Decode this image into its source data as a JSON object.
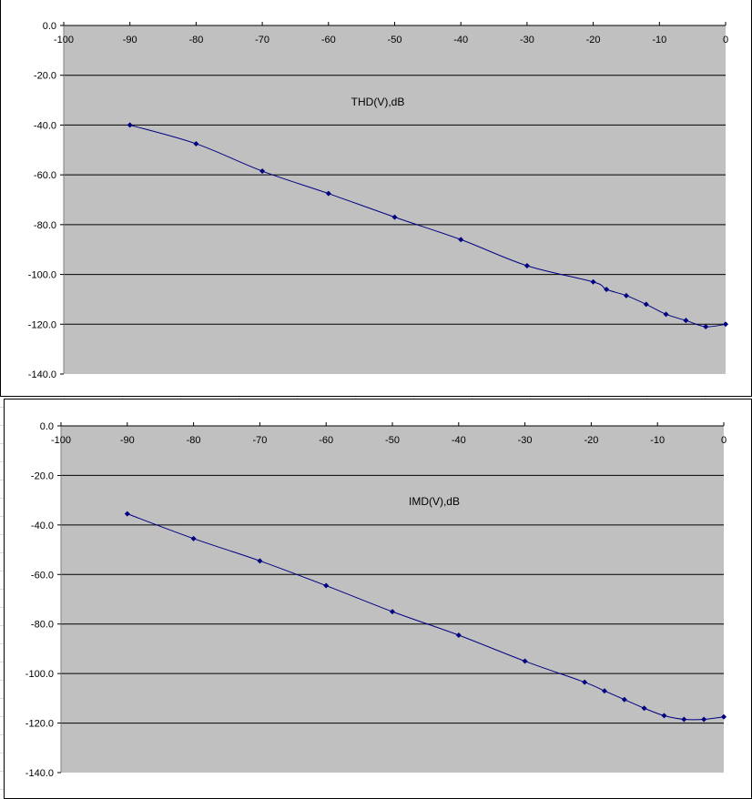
{
  "chart_data": [
    {
      "type": "line",
      "title": "THD(V),dB",
      "xlabel": "",
      "ylabel": "",
      "xlim": [
        -100,
        0
      ],
      "ylim": [
        -140,
        0
      ],
      "x_ticks": [
        "-100",
        "-90",
        "-80",
        "-70",
        "-60",
        "-50",
        "-40",
        "-30",
        "-20",
        "-10",
        "0"
      ],
      "y_ticks": [
        "0.0",
        "-20.0",
        "-40.0",
        "-60.0",
        "-80.0",
        "-100.0",
        "-120.0",
        "-140.0"
      ],
      "grid": "horizontal",
      "plot_background": "#c0c0c0",
      "series": [
        {
          "color": "#000080",
          "x": [
            -90,
            -80,
            -70,
            -60,
            -50,
            -40,
            -30,
            -20,
            -18,
            -15,
            -12,
            -9,
            -6,
            -3,
            0
          ],
          "y": [
            -40,
            -47.5,
            -58.5,
            -67.5,
            -77,
            -86,
            -96.5,
            -103,
            -106,
            -108.5,
            -112,
            -116,
            -118.5,
            -121,
            -120
          ]
        }
      ]
    },
    {
      "type": "line",
      "title": "IMD(V),dB",
      "xlabel": "",
      "ylabel": "",
      "xlim": [
        -100,
        0
      ],
      "ylim": [
        -140,
        0
      ],
      "x_ticks": [
        "-100",
        "-90",
        "-80",
        "-70",
        "-60",
        "-50",
        "-40",
        "-30",
        "-20",
        "-10",
        "0"
      ],
      "y_ticks": [
        "0.0",
        "-20.0",
        "-40.0",
        "-60.0",
        "-80.0",
        "-100.0",
        "-120.0",
        "-140.0"
      ],
      "grid": "horizontal",
      "plot_background": "#c0c0c0",
      "series": [
        {
          "color": "#000080",
          "x": [
            -90,
            -80,
            -70,
            -60,
            -50,
            -40,
            -30,
            -21,
            -18,
            -15,
            -12,
            -9,
            -6,
            -3,
            0
          ],
          "y": [
            -35.5,
            -45.5,
            -54.5,
            -64.5,
            -75,
            -84.5,
            -95,
            -103.5,
            -107,
            -110.5,
            -114,
            -117,
            -118.5,
            -118.5,
            -117.5
          ]
        }
      ]
    }
  ]
}
